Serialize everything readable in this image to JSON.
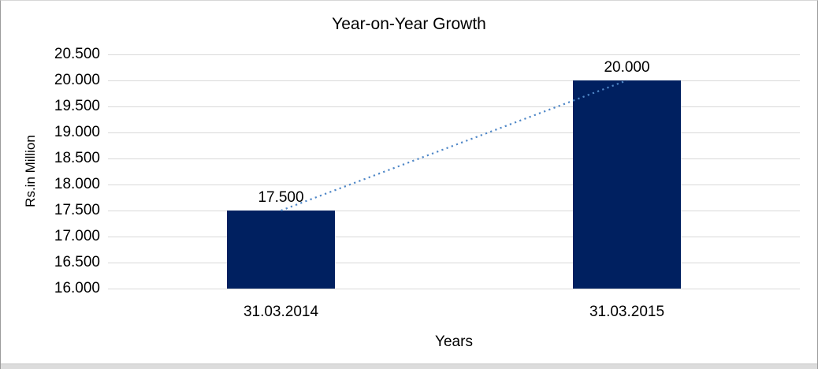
{
  "chart_data": {
    "type": "bar",
    "title": "Year-on-Year Growth",
    "xlabel": "Years",
    "ylabel": "Rs.in Million",
    "categories": [
      "31.03.2014",
      "31.03.2015"
    ],
    "values": [
      17.5,
      20.0
    ],
    "data_labels": [
      "17.500",
      "20.000"
    ],
    "ylim": [
      16.0,
      20.5
    ],
    "ytick_step": 0.5,
    "ytick_labels": [
      "16.000",
      "16.500",
      "17.000",
      "17.500",
      "18.000",
      "18.500",
      "19.000",
      "19.500",
      "20.000",
      "20.500"
    ],
    "grid": true,
    "legend": "none",
    "trendline": {
      "style": "dotted",
      "from_value": 17.5,
      "to_value": 20.0
    }
  },
  "colors": {
    "bar_fill": "#002060",
    "trendline": "#4f87c7",
    "gridline": "#d9d9d9",
    "text": "#000000"
  }
}
